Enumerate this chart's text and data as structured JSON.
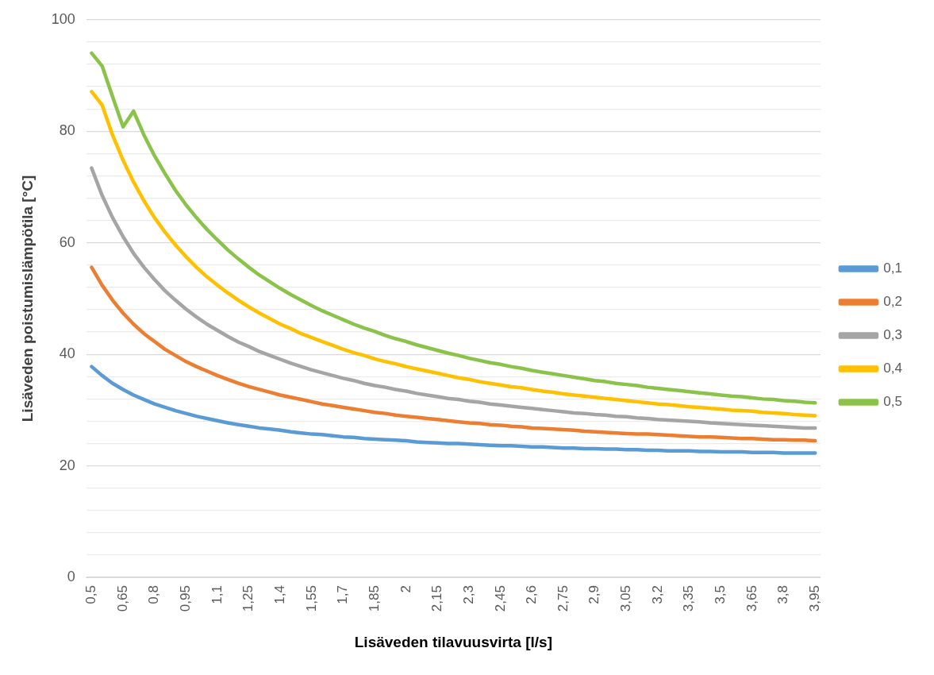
{
  "chart_data": {
    "type": "line",
    "xlabel": "Lisäveden tilavuusvirta [l/s]",
    "ylabel": "Lisäveden poistumislämpötila [°C]",
    "categories": [
      "0,5",
      null,
      null,
      "0,65",
      null,
      null,
      "0,8",
      null,
      null,
      "0,95",
      null,
      null,
      "1,1",
      null,
      null,
      "1,25",
      null,
      null,
      "1,4",
      null,
      null,
      "1,55",
      null,
      null,
      "1,7",
      null,
      null,
      "1,85",
      null,
      null,
      "2",
      null,
      null,
      "2,15",
      null,
      null,
      "2,3",
      null,
      null,
      "2,45",
      null,
      null,
      "2,6",
      null,
      null,
      "2,75",
      null,
      null,
      "2,9",
      null,
      null,
      "3,05",
      null,
      null,
      "3,2",
      null,
      null,
      "3,35",
      null,
      null,
      "3,5",
      null,
      null,
      "3,65",
      null,
      null,
      "3,8",
      null,
      null,
      "3,95"
    ],
    "series": [
      {
        "name": "0,1",
        "color": "#5b9bd5",
        "values": [
          37.8,
          36.2,
          34.8,
          33.7,
          32.7,
          31.9,
          31.1,
          30.5,
          29.9,
          29.4,
          28.9,
          28.5,
          28.1,
          27.7,
          27.4,
          27.1,
          26.8,
          26.6,
          26.4,
          26.1,
          25.9,
          25.7,
          25.6,
          25.4,
          25.2,
          25.1,
          24.9,
          24.8,
          24.7,
          24.6,
          24.5,
          24.3,
          24.2,
          24.1,
          24.0,
          24.0,
          23.9,
          23.8,
          23.7,
          23.6,
          23.6,
          23.5,
          23.4,
          23.4,
          23.3,
          23.2,
          23.2,
          23.1,
          23.1,
          23.0,
          23.0,
          22.9,
          22.9,
          22.8,
          22.8,
          22.7,
          22.7,
          22.7,
          22.6,
          22.6,
          22.5,
          22.5,
          22.5,
          22.4,
          22.4,
          22.4,
          22.3,
          22.3,
          22.3,
          22.3
        ]
      },
      {
        "name": "0,2",
        "color": "#ed7d31",
        "values": [
          55.6,
          52.4,
          49.7,
          47.4,
          45.4,
          43.7,
          42.3,
          40.9,
          39.8,
          38.7,
          37.8,
          37.0,
          36.2,
          35.5,
          34.8,
          34.2,
          33.7,
          33.2,
          32.7,
          32.3,
          31.9,
          31.5,
          31.1,
          30.8,
          30.5,
          30.2,
          29.9,
          29.6,
          29.4,
          29.1,
          28.9,
          28.7,
          28.5,
          28.3,
          28.1,
          27.9,
          27.7,
          27.6,
          27.4,
          27.3,
          27.1,
          27.0,
          26.8,
          26.7,
          26.6,
          26.5,
          26.4,
          26.2,
          26.1,
          26.0,
          25.9,
          25.8,
          25.7,
          25.7,
          25.6,
          25.5,
          25.4,
          25.3,
          25.2,
          25.2,
          25.1,
          25.0,
          24.9,
          24.9,
          24.8,
          24.7,
          24.7,
          24.6,
          24.6,
          24.5
        ]
      },
      {
        "name": "0,3",
        "color": "#a5a5a5",
        "values": [
          73.4,
          68.5,
          64.5,
          61.1,
          58.1,
          55.6,
          53.4,
          51.4,
          49.7,
          48.1,
          46.7,
          45.4,
          44.3,
          43.2,
          42.2,
          41.4,
          40.5,
          39.8,
          39.1,
          38.4,
          37.8,
          37.2,
          36.7,
          36.2,
          35.7,
          35.3,
          34.8,
          34.4,
          34.1,
          33.7,
          33.4,
          33.0,
          32.7,
          32.4,
          32.1,
          31.9,
          31.6,
          31.4,
          31.1,
          30.9,
          30.7,
          30.5,
          30.3,
          30.1,
          29.9,
          29.7,
          29.5,
          29.4,
          29.2,
          29.1,
          28.9,
          28.8,
          28.6,
          28.5,
          28.3,
          28.2,
          28.1,
          28.0,
          27.9,
          27.7,
          27.6,
          27.5,
          27.4,
          27.3,
          27.2,
          27.1,
          27.0,
          26.9,
          26.8,
          26.8
        ]
      },
      {
        "name": "0,4",
        "color": "#ffc000",
        "values": [
          87.1,
          84.7,
          79.3,
          74.8,
          70.9,
          67.5,
          64.5,
          61.9,
          59.6,
          57.5,
          55.6,
          53.9,
          52.4,
          51.0,
          49.7,
          48.5,
          47.4,
          46.4,
          45.4,
          44.6,
          43.7,
          43.0,
          42.3,
          41.6,
          40.9,
          40.3,
          39.8,
          39.2,
          38.7,
          38.3,
          37.8,
          37.4,
          37.0,
          36.6,
          36.2,
          35.8,
          35.5,
          35.1,
          34.8,
          34.5,
          34.2,
          34.0,
          33.7,
          33.4,
          33.2,
          32.9,
          32.7,
          32.5,
          32.3,
          32.1,
          31.9,
          31.7,
          31.5,
          31.3,
          31.1,
          31.0,
          30.8,
          30.6,
          30.5,
          30.3,
          30.2,
          30.0,
          29.9,
          29.8,
          29.6,
          29.5,
          29.4,
          29.2,
          29.1,
          29.0
        ]
      },
      {
        "name": "0,5",
        "color": "#8bc34a",
        "values": [
          94.0,
          91.7,
          86.2,
          80.8,
          83.6,
          79.3,
          75.6,
          72.4,
          69.4,
          66.8,
          64.5,
          62.4,
          60.5,
          58.7,
          57.1,
          55.6,
          54.2,
          53.0,
          51.8,
          50.7,
          49.7,
          48.7,
          47.8,
          47.0,
          46.2,
          45.4,
          44.7,
          44.1,
          43.4,
          42.8,
          42.3,
          41.7,
          41.2,
          40.7,
          40.2,
          39.8,
          39.3,
          38.9,
          38.5,
          38.2,
          37.8,
          37.5,
          37.1,
          36.8,
          36.5,
          36.2,
          35.9,
          35.6,
          35.3,
          35.1,
          34.8,
          34.6,
          34.4,
          34.1,
          33.9,
          33.7,
          33.5,
          33.3,
          33.1,
          32.9,
          32.7,
          32.5,
          32.4,
          32.2,
          32.0,
          31.9,
          31.7,
          31.6,
          31.4,
          31.3
        ]
      }
    ],
    "ylim": [
      0,
      100
    ],
    "yticks": [
      0,
      {
        "value": 4,
        "label": null
      },
      {
        "value": 8,
        "label": null
      },
      {
        "value": 12,
        "label": null
      },
      {
        "value": 16,
        "label": null
      },
      20,
      {
        "value": 24,
        "label": null
      },
      {
        "value": 28,
        "label": null
      },
      {
        "value": 32,
        "label": null
      },
      {
        "value": 36,
        "label": null
      },
      40,
      {
        "value": 44,
        "label": null
      },
      {
        "value": 48,
        "label": null
      },
      {
        "value": 52,
        "label": null
      },
      {
        "value": 56,
        "label": null
      },
      60,
      {
        "value": 64,
        "label": null
      },
      {
        "value": 68,
        "label": null
      },
      {
        "value": 72,
        "label": null
      },
      {
        "value": 76,
        "label": null
      },
      80,
      {
        "value": 84,
        "label": null
      },
      {
        "value": 88,
        "label": null
      },
      {
        "value": 92,
        "label": null
      },
      {
        "value": 96,
        "label": null
      },
      100
    ],
    "grid": "y",
    "legend": "right",
    "marker": "none",
    "line_style": "solid"
  }
}
